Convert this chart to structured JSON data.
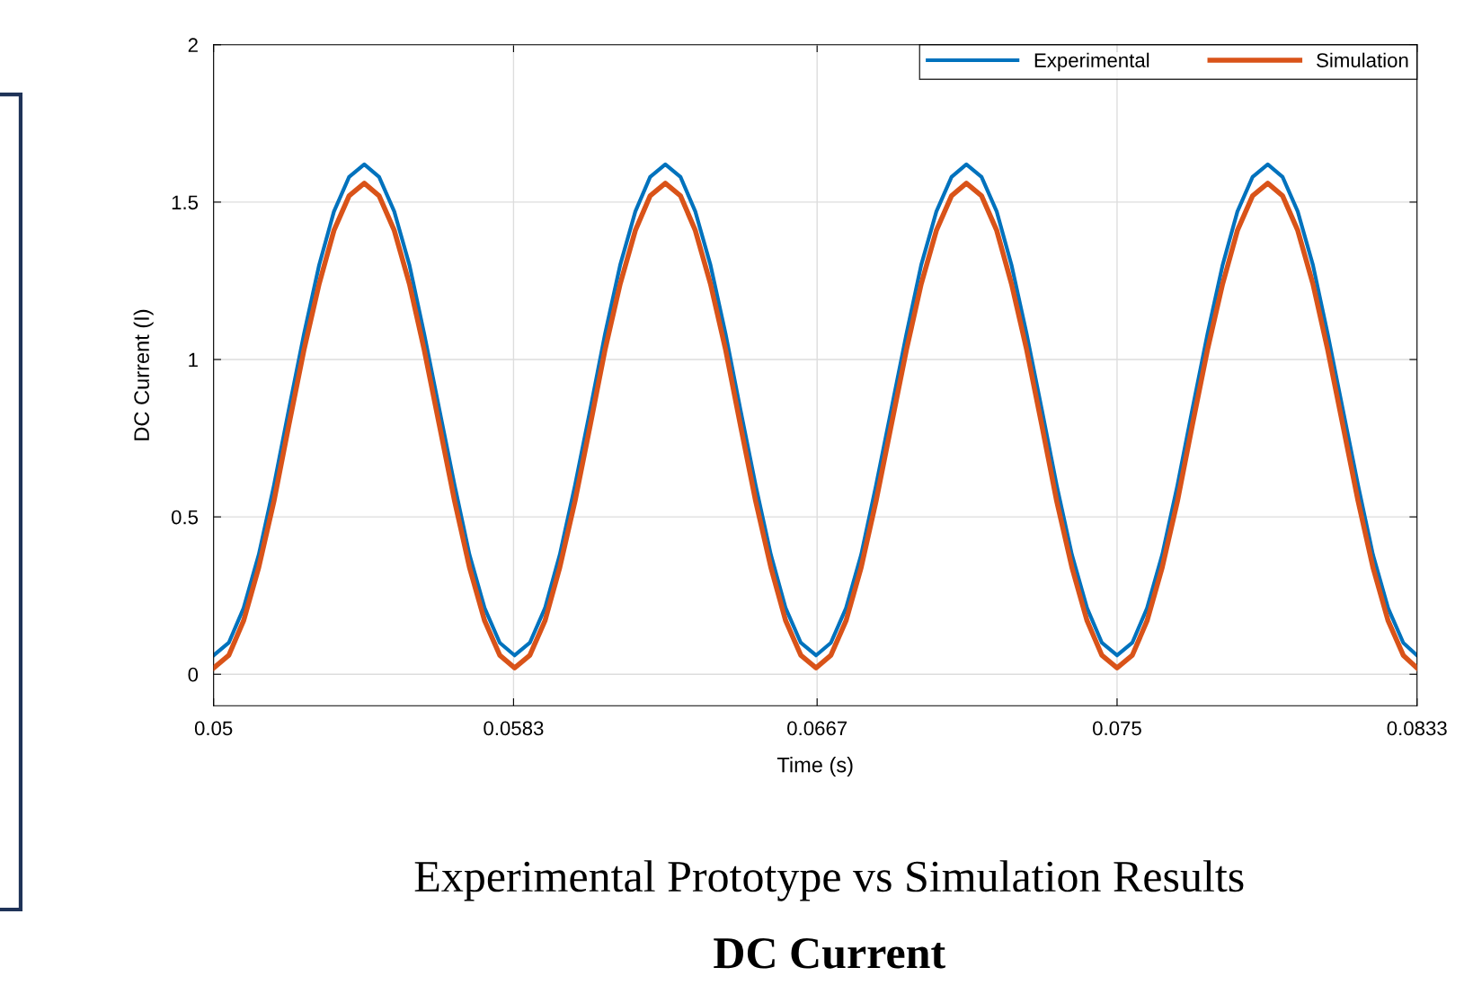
{
  "chart_data": {
    "type": "line",
    "title": "Experimental Prototype vs Simulation Results",
    "subtitle": "DC Current",
    "xlabel": "Time (s)",
    "ylabel": "DC Current (I)",
    "x": [
      0.05,
      0.05042,
      0.05083,
      0.05125,
      0.05167,
      0.05208,
      0.0525,
      0.05292,
      0.05333,
      0.05375,
      0.05417,
      0.05458,
      0.055,
      0.05542,
      0.05583,
      0.05625,
      0.05667,
      0.05708,
      0.0575,
      0.05792,
      0.05833,
      0.05875,
      0.05917,
      0.05958,
      0.06,
      0.06042,
      0.06083,
      0.06125,
      0.06167,
      0.06208,
      0.0625,
      0.06292,
      0.06333,
      0.06375,
      0.06417,
      0.06458,
      0.065,
      0.06542,
      0.06583,
      0.06625,
      0.06667,
      0.06708,
      0.0675,
      0.06792,
      0.06833,
      0.06875,
      0.06917,
      0.06958,
      0.07,
      0.07042,
      0.07083,
      0.07125,
      0.07167,
      0.07208,
      0.0725,
      0.07292,
      0.07333,
      0.07375,
      0.07417,
      0.07458,
      0.075,
      0.07542,
      0.07583,
      0.07625,
      0.07667,
      0.07708,
      0.0775,
      0.07792,
      0.07833,
      0.07875,
      0.07917,
      0.07958,
      0.08,
      0.08042,
      0.08083,
      0.08125,
      0.08167,
      0.08208,
      0.0825,
      0.08292,
      0.0833
    ],
    "series": [
      {
        "name": "Experimental",
        "color": "#0072bd",
        "values": [
          0.06,
          0.1,
          0.21,
          0.38,
          0.6,
          0.84,
          1.08,
          1.3,
          1.47,
          1.58,
          1.62,
          1.58,
          1.47,
          1.3,
          1.08,
          0.84,
          0.6,
          0.38,
          0.21,
          0.1,
          0.06,
          0.1,
          0.21,
          0.38,
          0.6,
          0.84,
          1.08,
          1.3,
          1.47,
          1.58,
          1.62,
          1.58,
          1.47,
          1.3,
          1.08,
          0.84,
          0.6,
          0.38,
          0.21,
          0.1,
          0.06,
          0.1,
          0.21,
          0.38,
          0.6,
          0.84,
          1.08,
          1.3,
          1.47,
          1.58,
          1.62,
          1.58,
          1.47,
          1.3,
          1.08,
          0.84,
          0.6,
          0.38,
          0.21,
          0.1,
          0.06,
          0.1,
          0.21,
          0.38,
          0.6,
          0.84,
          1.08,
          1.3,
          1.47,
          1.58,
          1.62,
          1.58,
          1.47,
          1.3,
          1.08,
          0.84,
          0.6,
          0.38,
          0.21,
          0.1,
          0.06
        ]
      },
      {
        "name": "Simulation",
        "color": "#d95319",
        "values": [
          0.02,
          0.06,
          0.17,
          0.34,
          0.55,
          0.79,
          1.03,
          1.24,
          1.41,
          1.52,
          1.56,
          1.52,
          1.41,
          1.24,
          1.03,
          0.79,
          0.55,
          0.34,
          0.17,
          0.06,
          0.02,
          0.06,
          0.17,
          0.34,
          0.55,
          0.79,
          1.03,
          1.24,
          1.41,
          1.52,
          1.56,
          1.52,
          1.41,
          1.24,
          1.03,
          0.79,
          0.55,
          0.34,
          0.17,
          0.06,
          0.02,
          0.06,
          0.17,
          0.34,
          0.55,
          0.79,
          1.03,
          1.24,
          1.41,
          1.52,
          1.56,
          1.52,
          1.41,
          1.24,
          1.03,
          0.79,
          0.55,
          0.34,
          0.17,
          0.06,
          0.02,
          0.06,
          0.17,
          0.34,
          0.55,
          0.79,
          1.03,
          1.24,
          1.41,
          1.52,
          1.56,
          1.52,
          1.41,
          1.24,
          1.03,
          0.79,
          0.55,
          0.34,
          0.17,
          0.06,
          0.02
        ]
      }
    ],
    "xlim": [
      0.05,
      0.0833
    ],
    "xticks": [
      0.05,
      0.0583,
      0.0667,
      0.075,
      0.0833
    ],
    "ylim": [
      -0.1,
      2
    ],
    "yticks": [
      0,
      0.5,
      1,
      1.5,
      2
    ],
    "grid": true,
    "legend": "top right",
    "marker": "none",
    "line_style": "solid"
  }
}
